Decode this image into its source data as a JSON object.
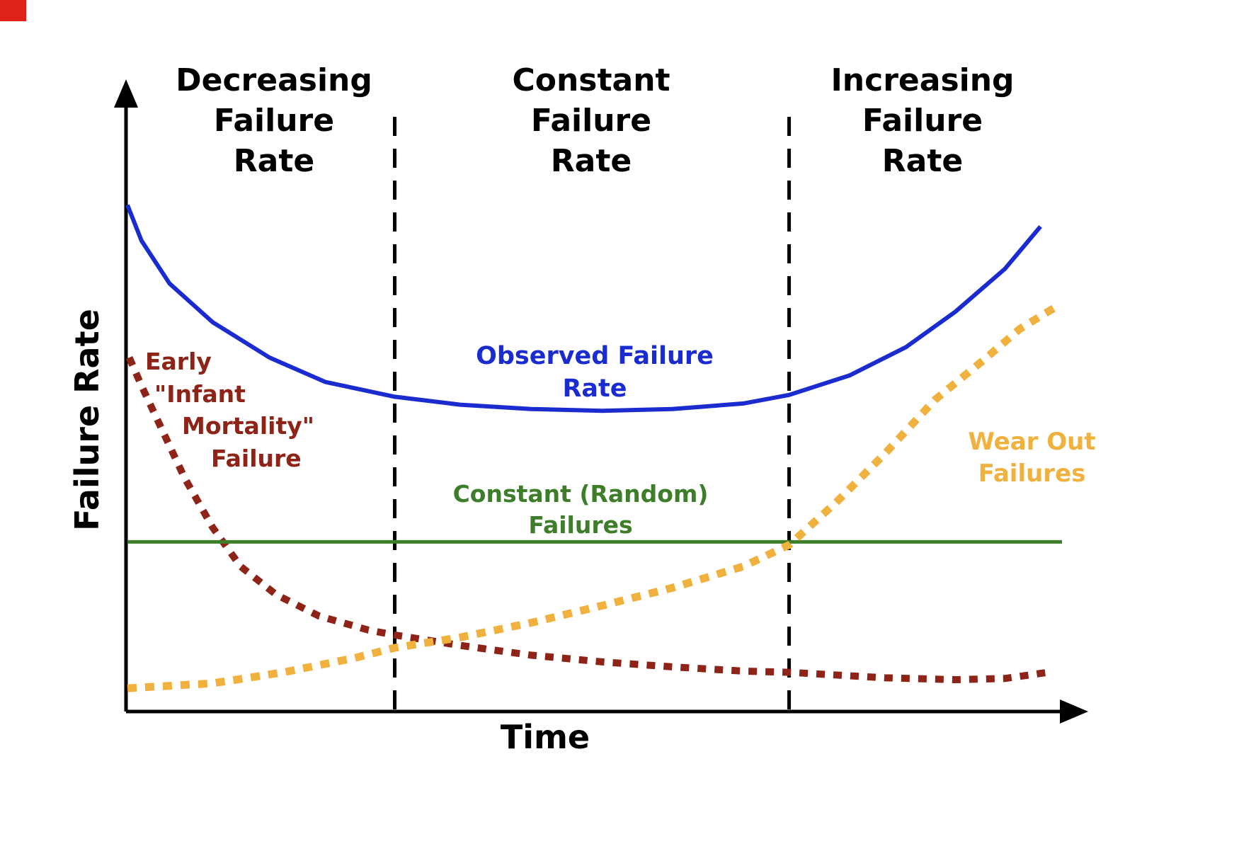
{
  "canvas": {
    "background": "#ffffff"
  },
  "corner_marker": {
    "color": "#df2217"
  },
  "chart_data": {
    "type": "line",
    "xlabel": "Time",
    "ylabel": "Failure Rate",
    "x_range": [
      0,
      100
    ],
    "y_range": [
      0,
      100
    ],
    "grid": false,
    "axis_color": "#000000",
    "boundary_line_style": "dashed",
    "legend": "inline-annotations",
    "regions": [
      {
        "label": "Decreasing\nFailure\nRate",
        "x_start": 0,
        "x_end": 28.6
      },
      {
        "label": "Constant\nFailure\nRate",
        "x_start": 28.6,
        "x_end": 70.8
      },
      {
        "label": "Increasing\nFailure\nRate",
        "x_start": 70.8,
        "x_end": 100
      }
    ],
    "series": [
      {
        "id": "observed-failure-rate",
        "name": "Observed Failure Rate",
        "annotation": "Observed Failure\nRate",
        "color": "#1a2cd0",
        "line_style": "solid",
        "line_width": 6,
        "points": [
          [
            0,
            82.7
          ],
          [
            1.5,
            76.9
          ],
          [
            4.5,
            69.9
          ],
          [
            9.1,
            63.6
          ],
          [
            15.2,
            57.8
          ],
          [
            21.2,
            53.8
          ],
          [
            28.6,
            51.4
          ],
          [
            35.6,
            50.1
          ],
          [
            43.2,
            49.4
          ],
          [
            50.8,
            49.1
          ],
          [
            58.3,
            49.4
          ],
          [
            65.9,
            50.3
          ],
          [
            70.8,
            51.7
          ],
          [
            77.3,
            54.9
          ],
          [
            83.3,
            59.5
          ],
          [
            88.6,
            65.3
          ],
          [
            93.9,
            72.3
          ],
          [
            97.7,
            79.2
          ]
        ]
      },
      {
        "id": "early-infant-mortality",
        "name": "Early \"Infant Mortality\" Failure",
        "annotation_lines": [
          "Early",
          "\"Infant",
          "Mortality\"",
          "Failure"
        ],
        "color": "#8e2317",
        "line_style": "dotted",
        "dash": "12 12",
        "line_width": 10,
        "points": [
          [
            0.2,
            57.8
          ],
          [
            1.5,
            53.2
          ],
          [
            3.8,
            45.7
          ],
          [
            6.1,
            38.2
          ],
          [
            9.1,
            30.1
          ],
          [
            12.1,
            23.7
          ],
          [
            15.9,
            19.1
          ],
          [
            20.5,
            15.6
          ],
          [
            25.8,
            13.3
          ],
          [
            28.6,
            12.5
          ],
          [
            35.6,
            10.8
          ],
          [
            43.2,
            9.2
          ],
          [
            50.8,
            8.1
          ],
          [
            58.3,
            7.3
          ],
          [
            65.9,
            6.6
          ],
          [
            70.8,
            6.4
          ],
          [
            81.1,
            5.5
          ],
          [
            88.6,
            5.2
          ],
          [
            93.9,
            5.4
          ],
          [
            98.5,
            6.4
          ]
        ]
      },
      {
        "id": "constant-random-failures",
        "name": "Constant (Random) Failures",
        "annotation": "Constant (Random)\nFailures",
        "color": "#3e7e2b",
        "line_style": "solid",
        "line_width": 5,
        "points": [
          [
            0,
            27.7
          ],
          [
            100,
            27.7
          ]
        ]
      },
      {
        "id": "wear-out-failures",
        "name": "Wear Out Failures",
        "annotation": "Wear Out\nFailures",
        "color": "#f1b13f",
        "line_style": "dotted",
        "dash": "13 12",
        "line_width": 11,
        "points": [
          [
            0,
            3.8
          ],
          [
            9.1,
            4.6
          ],
          [
            16.7,
            6.4
          ],
          [
            24.2,
            8.7
          ],
          [
            28.6,
            10.4
          ],
          [
            35.6,
            12.1
          ],
          [
            43.2,
            14.5
          ],
          [
            50.8,
            17.3
          ],
          [
            58.3,
            20.2
          ],
          [
            65.9,
            23.7
          ],
          [
            70.8,
            27.2
          ],
          [
            75.8,
            34.1
          ],
          [
            81.1,
            42.2
          ],
          [
            86.4,
            50.9
          ],
          [
            91.7,
            57.5
          ],
          [
            95.5,
            62.5
          ],
          [
            99.8,
            66.5
          ]
        ]
      }
    ]
  }
}
